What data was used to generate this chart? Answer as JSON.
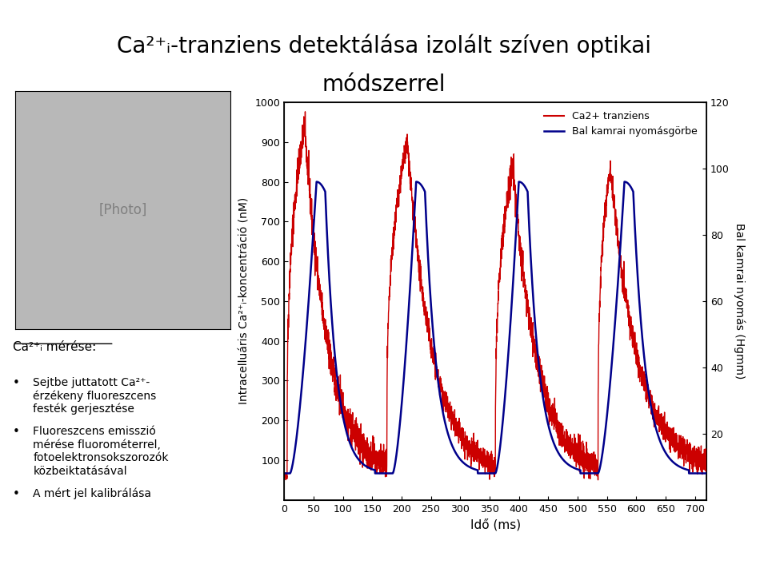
{
  "title_line1": "Ca²⁺ᵢ-tranziens detektálása izolált szíven optikai",
  "title_line2": "módszerrel",
  "left_ylabel": "Intracelluáris Ca²⁺ᵢ-koncentráció (nM)",
  "right_ylabel": "Bal kamrai nyomás (Hgmm)",
  "xlabel": "Idő (ms)",
  "legend_red": "Ca2+ tranziens",
  "legend_blue": "Bal kamrai nyomásgörbe",
  "ylim_left": [
    0,
    1000
  ],
  "ylim_right": [
    0,
    120
  ],
  "xlim": [
    0,
    720
  ],
  "xticks": [
    0,
    50,
    100,
    150,
    200,
    250,
    300,
    350,
    400,
    450,
    500,
    550,
    600,
    650,
    700
  ],
  "yticks_left": [
    100,
    200,
    300,
    400,
    500,
    600,
    700,
    800,
    900,
    1000
  ],
  "yticks_right": [
    20,
    40,
    60,
    80,
    100,
    120
  ],
  "subtext_header": "Ca²⁺ᵢ mérése:",
  "bullet1_line1": "Sejtbe juttatott Ca²⁺-",
  "bullet1_line2": "érzékeny fluoreszcens",
  "bullet1_line3": "festék gerjesztése",
  "bullet2_line1": "Fluoreszcens emisszió",
  "bullet2_line2": "mérése fluorométerrel,",
  "bullet2_line3": "fotoelektronsokszorozók",
  "bullet2_line4": "közbeiktatásával",
  "bullet3": "A mért jel kalibrálása",
  "red_color": "#cc0000",
  "blue_color": "#00008B",
  "background_color": "#ffffff",
  "title_fontsize": 20,
  "axis_fontsize": 10,
  "tick_fontsize": 9,
  "legend_fontsize": 9
}
